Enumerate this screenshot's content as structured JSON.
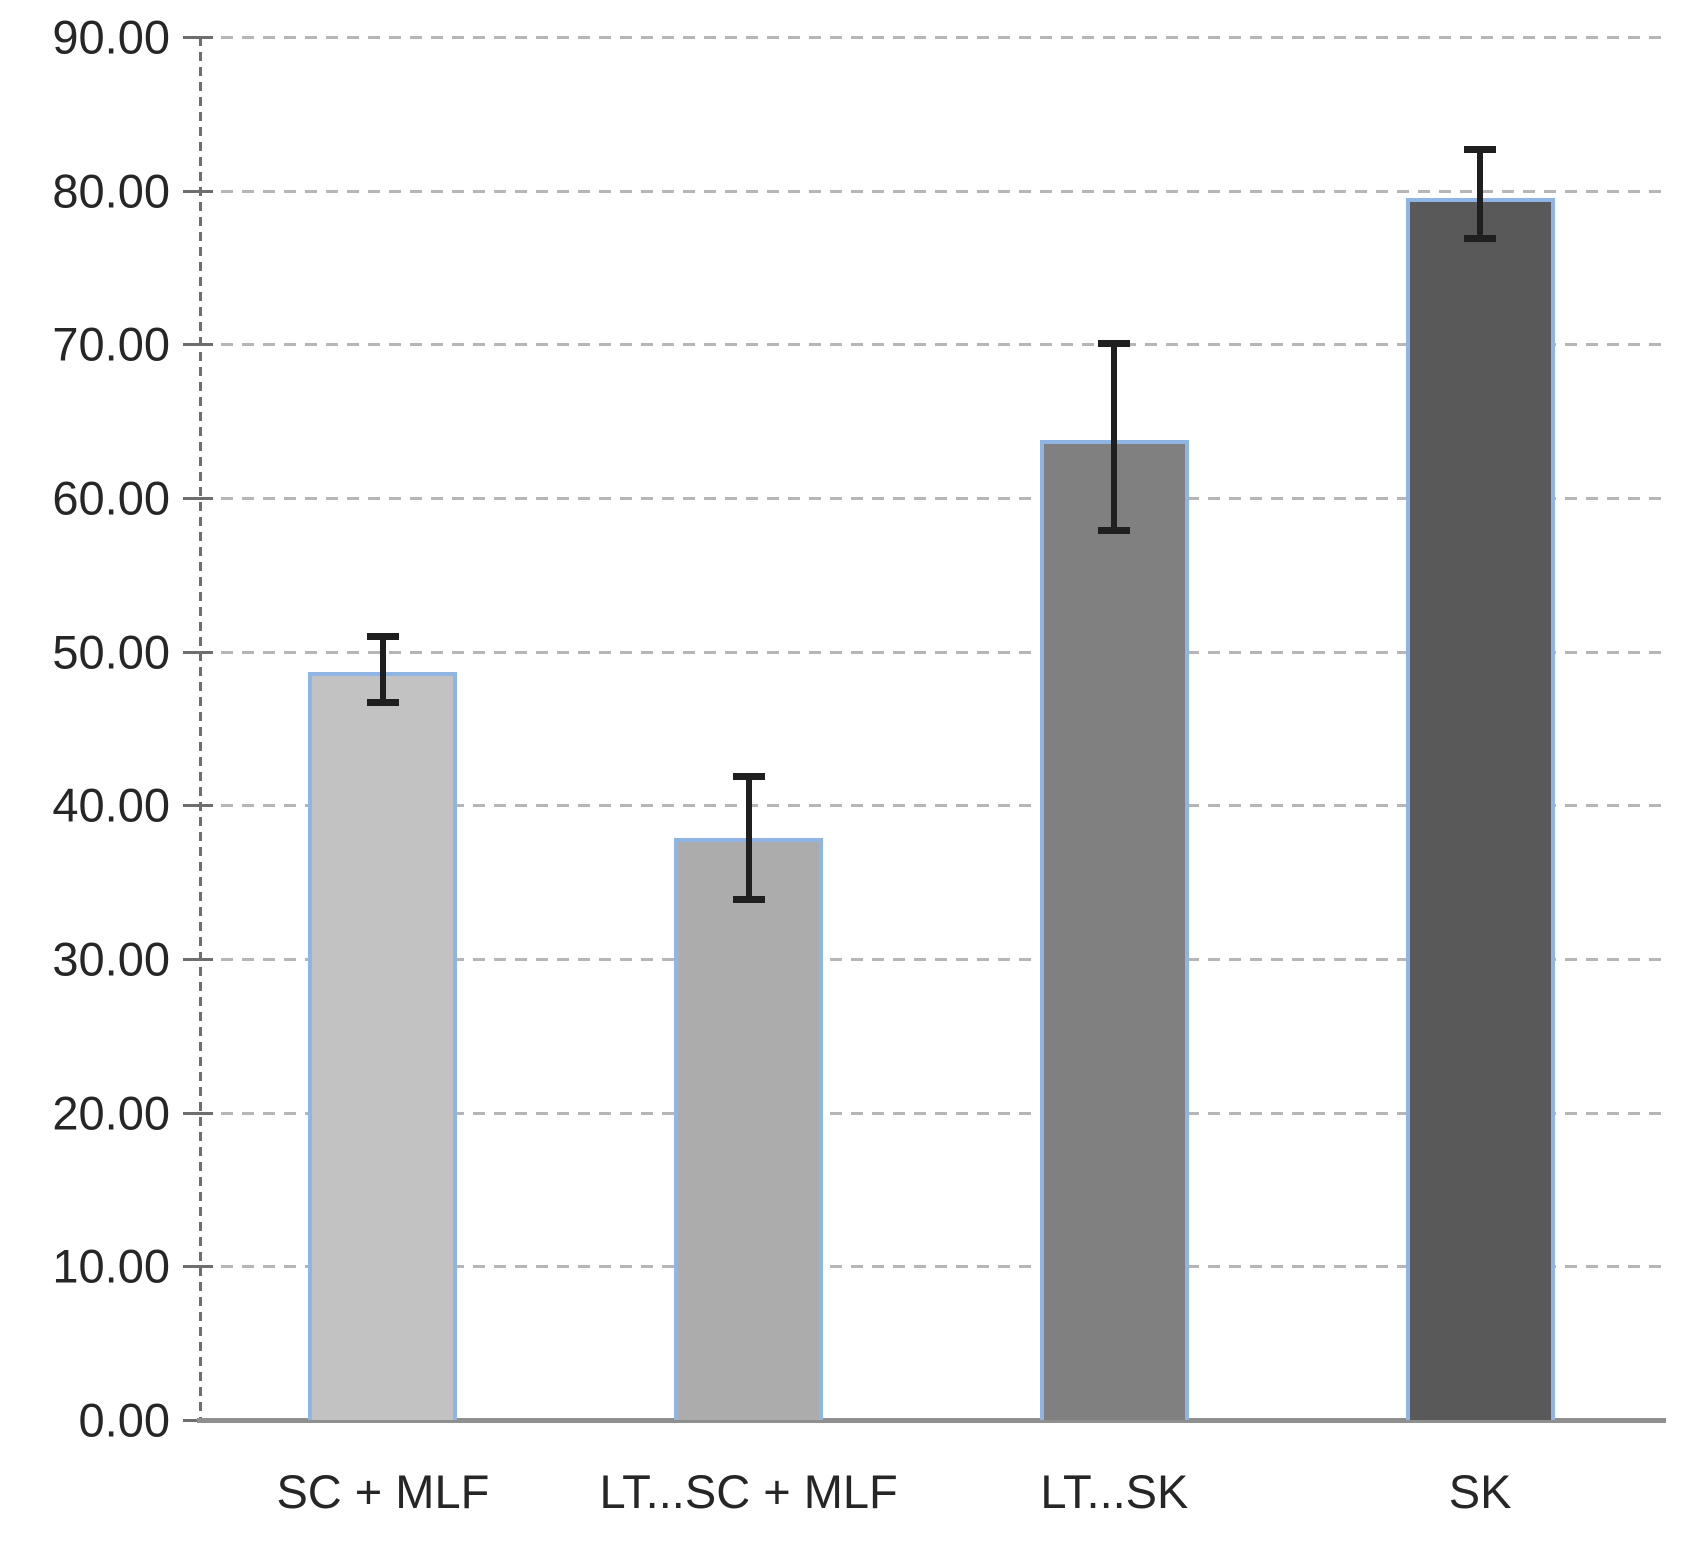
{
  "chart_data": {
    "type": "bar",
    "title": "",
    "xlabel": "",
    "ylabel": "",
    "categories": [
      "SC + MLF",
      "LT...SC + MLF",
      "LT...SK",
      "SK"
    ],
    "values": [
      48.7,
      37.9,
      63.8,
      79.5
    ],
    "error_high": [
      51.0,
      41.9,
      70.1,
      82.7
    ],
    "error_low": [
      46.7,
      33.9,
      57.9,
      76.9
    ],
    "ylim": [
      0,
      90
    ],
    "ytick_step": 10,
    "ytick_labels": [
      "0.00",
      "10.00",
      "20.00",
      "30.00",
      "40.00",
      "50.00",
      "60.00",
      "70.00",
      "80.00",
      "90.00"
    ],
    "grid": true,
    "gridline_style": "dashed",
    "legend_position": "none",
    "bar_fill_colors": [
      "#c2c2c2",
      "#acacac",
      "#808080",
      "#595959"
    ],
    "bar_border_color": "#8fb5e5",
    "error_bar_color": "#1f1f1f",
    "axis_color": "#6e6e6e",
    "baseline_color": "#8f8f8f",
    "gridline_color": "#9e9e9e",
    "label_color": "#262626"
  }
}
